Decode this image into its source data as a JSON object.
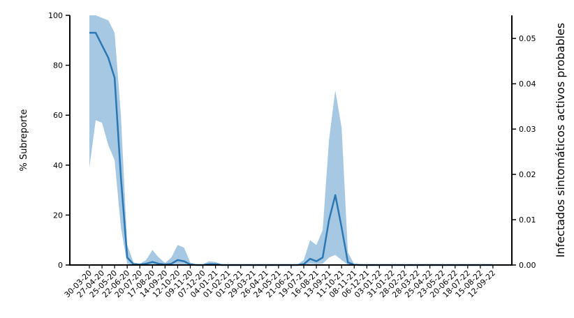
{
  "chart_data": {
    "type": "line",
    "y_label": "% Subreporte",
    "y2_label": "Infectados sintomáticos activos probables",
    "categories": [
      "30-03-20",
      null,
      "27-04-20",
      null,
      "25-05-20",
      null,
      "22-06-20",
      null,
      "20-07-20",
      null,
      "17-08-20",
      null,
      "14-09-20",
      null,
      "12-10-20",
      null,
      "09-11-20",
      null,
      "07-12-20",
      null,
      "04-01-21",
      null,
      "01-02-21",
      null,
      "01-03-21",
      null,
      "29-03-21",
      null,
      "26-04-21",
      null,
      "24-05-21",
      null,
      "21-06-21",
      null,
      "19-07-21",
      null,
      "16-08-21",
      null,
      "13-09-21",
      null,
      "11-10-21",
      null,
      "08-11-21",
      null,
      "06-12-21",
      null,
      "03-01-22",
      null,
      "31-01-22",
      null,
      "28-02-22",
      null,
      "28-03-22",
      null,
      "25-04-22",
      null,
      "23-05-22",
      null,
      "20-06-22",
      null,
      "18-07-22",
      null,
      "15-08-22",
      null,
      "12-09-22"
    ],
    "values": [
      93,
      93,
      88,
      83,
      75,
      35,
      3,
      0.3,
      0.2,
      0.5,
      1.2,
      0.5,
      0.2,
      0.5,
      2,
      1.5,
      0.2,
      0,
      0,
      0.3,
      0.3,
      0,
      0,
      0,
      0,
      0,
      0,
      0,
      0,
      0,
      0,
      0,
      0,
      0,
      0.3,
      2.5,
      1.5,
      3,
      18,
      28,
      15,
      1,
      0.1,
      0,
      0,
      0,
      0,
      0,
      0,
      0,
      0,
      0,
      0,
      0,
      0,
      0,
      0,
      0,
      0,
      0,
      0,
      0,
      0,
      0,
      0
    ],
    "band": {
      "lower": [
        39,
        58,
        57,
        48,
        42,
        15,
        0.5,
        0,
        0,
        0,
        0.2,
        0,
        0,
        0,
        0.3,
        0.2,
        0,
        0,
        0,
        0,
        0,
        0,
        0,
        0,
        0,
        0,
        0,
        0,
        0,
        0,
        0,
        0,
        0,
        0,
        0,
        0.5,
        0.3,
        0.5,
        3,
        4,
        2,
        0.1,
        0,
        0,
        0,
        0,
        0,
        0,
        0,
        0,
        0,
        0,
        0,
        0,
        0,
        0,
        0,
        0,
        0,
        0,
        0,
        0,
        0,
        0,
        0
      ],
      "upper": [
        100,
        100,
        99,
        98,
        93,
        60,
        8,
        1,
        0.5,
        2,
        6,
        3,
        0.8,
        3,
        8,
        7,
        1,
        0.2,
        0.3,
        1.5,
        1.2,
        0.3,
        0.2,
        0.2,
        0.2,
        0.2,
        0.2,
        0.2,
        0.2,
        0.2,
        0.2,
        0.2,
        0.2,
        0.2,
        2,
        10,
        8,
        14,
        50,
        70,
        55,
        5,
        0.3,
        0,
        0,
        0,
        0,
        0,
        0,
        0,
        0,
        0,
        0,
        0,
        0,
        0,
        0,
        0,
        0,
        0,
        0,
        0,
        0,
        0,
        0
      ],
      "color": "#a6c8e2"
    },
    "color": "#2a77b4",
    "ylim": [
      0,
      100
    ],
    "yticks": [
      0,
      20,
      40,
      60,
      80,
      100
    ],
    "y2lim": [
      0,
      0.0551
    ],
    "y2ticks": [
      {
        "value": 0,
        "label": "0.00"
      },
      {
        "value": 0.01,
        "label": "0.01"
      },
      {
        "value": 0.02,
        "label": "0.02"
      },
      {
        "value": 0.03,
        "label": "0.03"
      },
      {
        "value": 0.04,
        "label": "0.04"
      },
      {
        "value": 0.05,
        "label": "0.05"
      }
    ]
  }
}
